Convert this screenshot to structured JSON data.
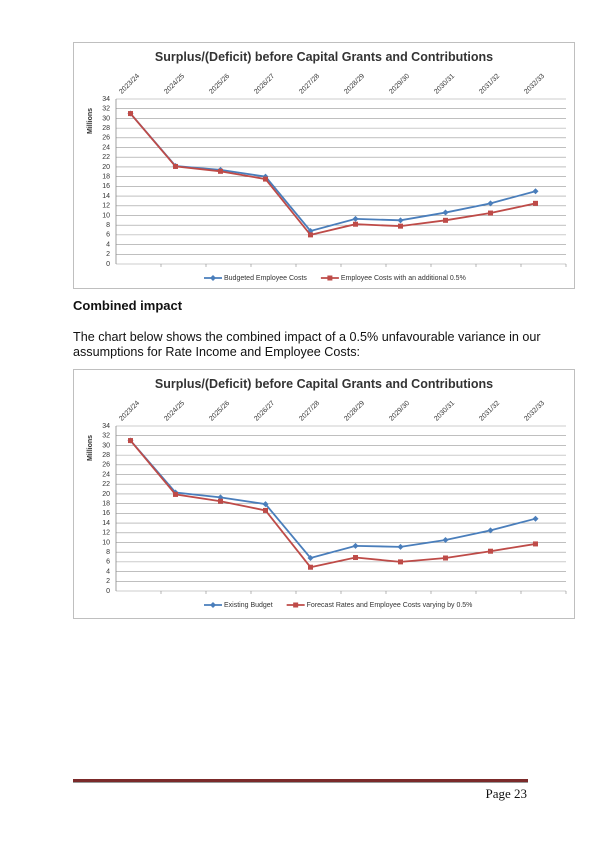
{
  "chart_data": [
    {
      "type": "line",
      "title": "Surplus/(Deficit) before Capital Grants and Contributions",
      "y_label": "Millions",
      "categories": [
        "2023/24",
        "2024/25",
        "2025/26",
        "2026/27",
        "2027/28",
        "2028/29",
        "2029/30",
        "2030/31",
        "2031/32",
        "2032/33"
      ],
      "series": [
        {
          "name": "Budgeted Employee Costs",
          "color": "#4a7ebb",
          "marker": "diamond",
          "values": [
            31,
            20.2,
            19.4,
            18,
            6.8,
            9.3,
            9,
            10.6,
            12.5,
            15
          ]
        },
        {
          "name": "Employee Costs with an additional 0.5%",
          "color": "#be4b48",
          "marker": "square",
          "values": [
            31,
            20.1,
            19.1,
            17.5,
            6,
            8.2,
            7.8,
            9,
            10.5,
            12.5
          ]
        }
      ],
      "ylim": [
        0,
        34
      ],
      "yticks": [
        0,
        2,
        4,
        6,
        8,
        10,
        12,
        14,
        16,
        18,
        20,
        22,
        24,
        26,
        28,
        30,
        32,
        34
      ],
      "grid": true
    },
    {
      "type": "line",
      "title": "Surplus/(Deficit) before Capital Grants and Contributions",
      "y_label": "Millions",
      "categories": [
        "2023/24",
        "2024/25",
        "2025/26",
        "2026/27",
        "2027/28",
        "2028/29",
        "2029/30",
        "2030/31",
        "2031/32",
        "2032/33"
      ],
      "series": [
        {
          "name": "Existing Budget",
          "color": "#4a7ebb",
          "marker": "diamond",
          "values": [
            31,
            20.3,
            19.3,
            17.9,
            6.8,
            9.3,
            9.1,
            10.5,
            12.5,
            14.9
          ]
        },
        {
          "name": "Forecast Rates and Employee Costs varying by 0.5%",
          "color": "#be4b48",
          "marker": "square",
          "values": [
            31,
            19.9,
            18.5,
            16.6,
            4.9,
            6.9,
            6,
            6.8,
            8.2,
            9.7
          ]
        }
      ],
      "ylim": [
        0,
        34
      ],
      "yticks": [
        0,
        2,
        4,
        6,
        8,
        10,
        12,
        14,
        16,
        18,
        20,
        22,
        24,
        26,
        28,
        30,
        32,
        34
      ],
      "grid": true
    }
  ],
  "heading": "Combined impact",
  "paragraph": "The chart below shows the combined impact of a 0.5% unfavourable variance in our assumptions for Rate Income and Employee Costs:",
  "footer": {
    "page": "Page 23"
  }
}
